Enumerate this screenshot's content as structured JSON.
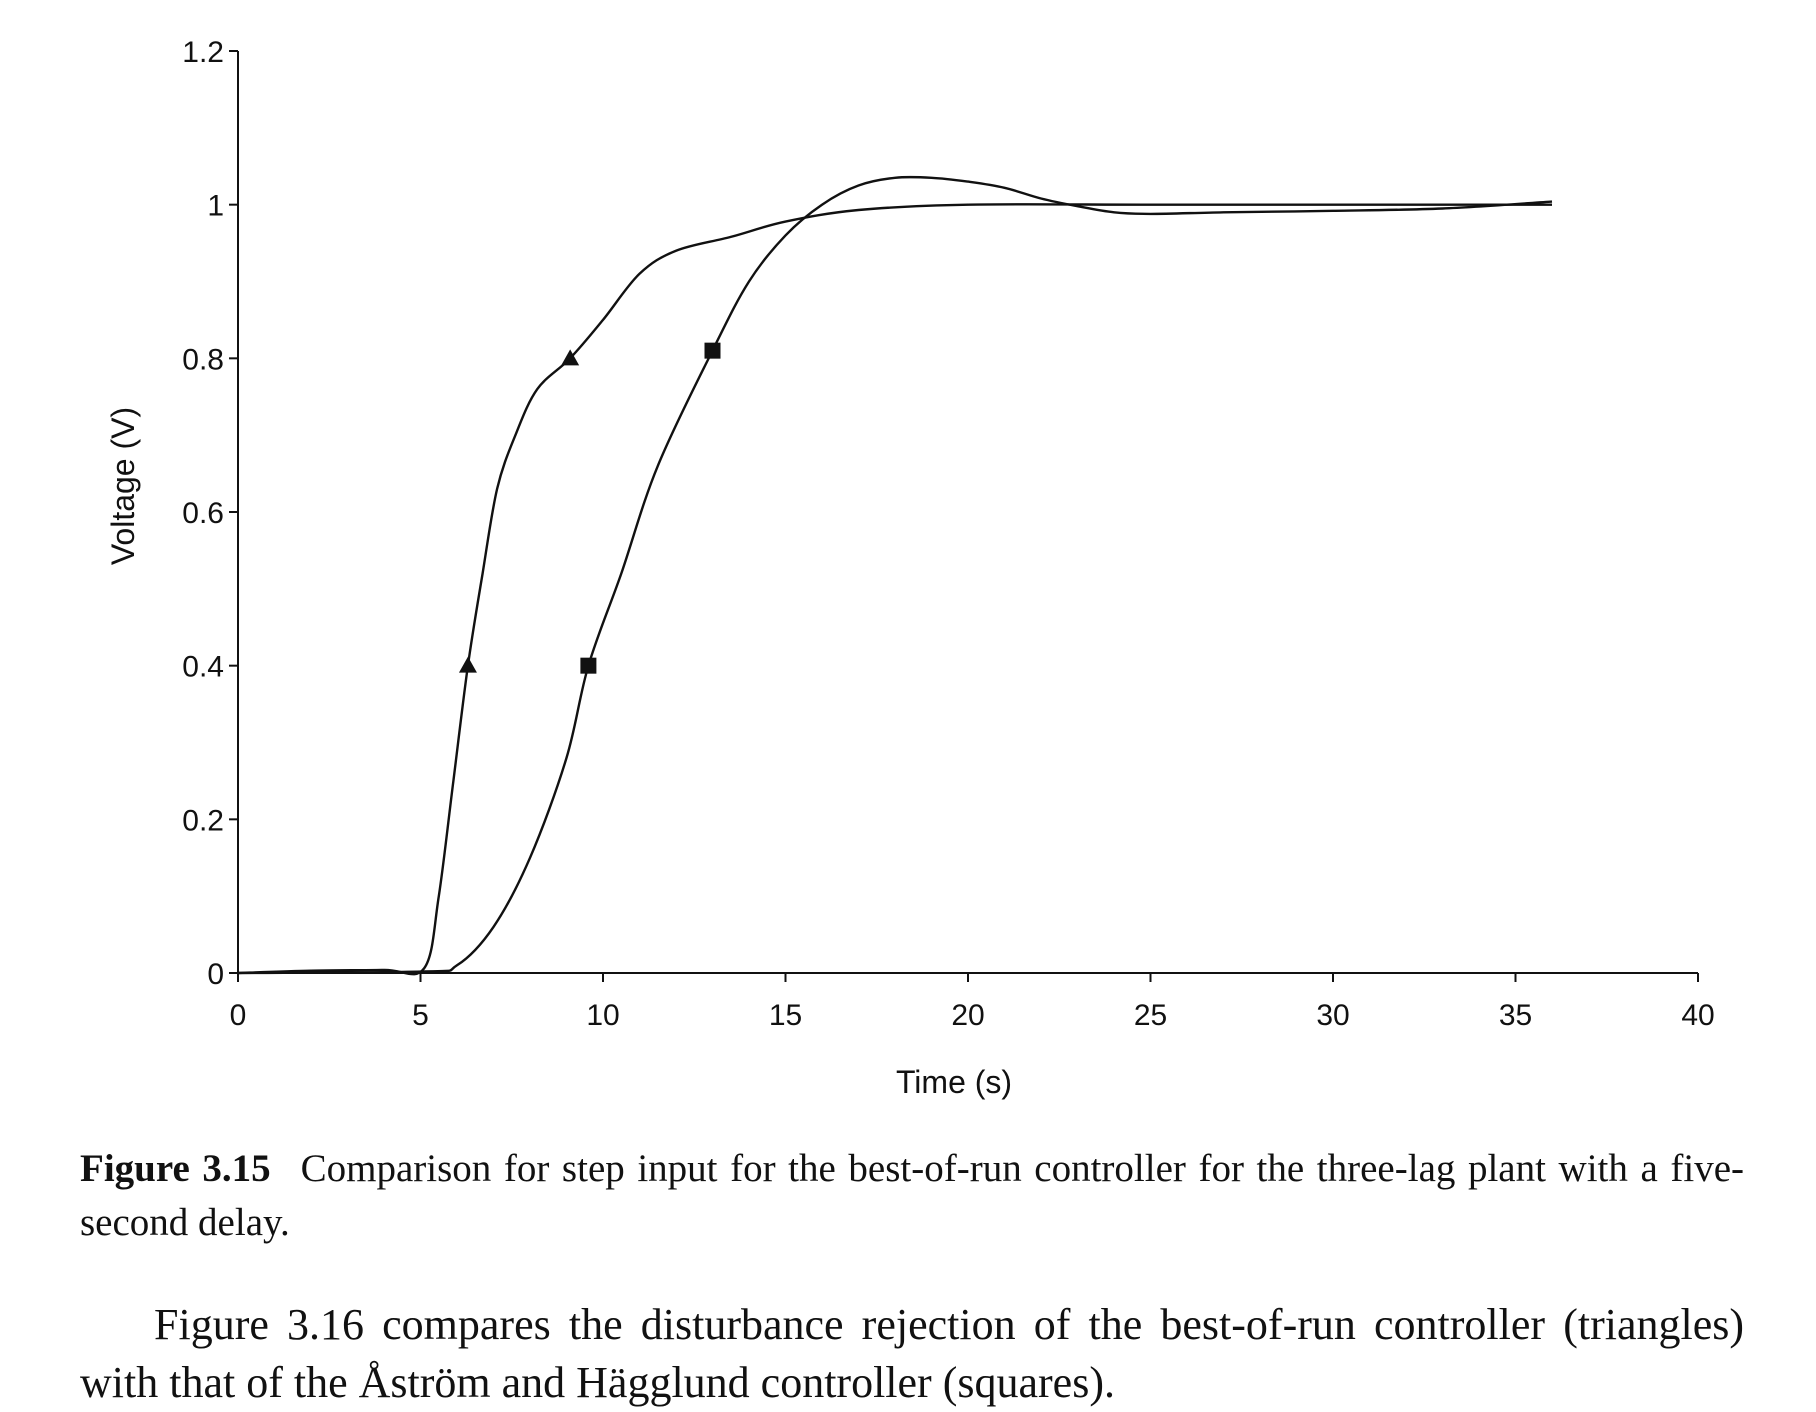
{
  "chart_data": {
    "type": "line",
    "xlabel": "Time (s)",
    "ylabel": "Voltage (V)",
    "xlim": [
      0,
      40
    ],
    "ylim": [
      0,
      1.2
    ],
    "x_ticks": [
      "0",
      "5",
      "10",
      "15",
      "20",
      "25",
      "30",
      "35",
      "40"
    ],
    "y_ticks": [
      "0",
      "0.2",
      "0.4",
      "0.6",
      "0.8",
      "1",
      "1.2"
    ],
    "grid": false,
    "series": [
      {
        "marker": "triangle",
        "points": [
          [
            0,
            0
          ],
          [
            2,
            0.003
          ],
          [
            4,
            0.004
          ],
          [
            5.1,
            0.006
          ],
          [
            5.5,
            0.1
          ],
          [
            5.9,
            0.25
          ],
          [
            6.3,
            0.4
          ],
          [
            6.7,
            0.52
          ],
          [
            7.1,
            0.63
          ],
          [
            7.6,
            0.7
          ],
          [
            8.2,
            0.76
          ],
          [
            9.1,
            0.8
          ],
          [
            10,
            0.85
          ],
          [
            11,
            0.91
          ],
          [
            12,
            0.94
          ],
          [
            13.5,
            0.958
          ],
          [
            15,
            0.978
          ],
          [
            17,
            0.993
          ],
          [
            20,
            1.0
          ],
          [
            25,
            1.0
          ],
          [
            30,
            1.0
          ],
          [
            36,
            1.0
          ]
        ],
        "marker_points": [
          [
            6.3,
            0.4
          ],
          [
            9.1,
            0.8
          ]
        ]
      },
      {
        "marker": "square",
        "points": [
          [
            0,
            0
          ],
          [
            5.1,
            0.002
          ],
          [
            6,
            0.01
          ],
          [
            7,
            0.06
          ],
          [
            8,
            0.15
          ],
          [
            9,
            0.28
          ],
          [
            9.6,
            0.4
          ],
          [
            10.5,
            0.52
          ],
          [
            11.5,
            0.66
          ],
          [
            13,
            0.81
          ],
          [
            14,
            0.9
          ],
          [
            15,
            0.96
          ],
          [
            16,
            1.0
          ],
          [
            17,
            1.025
          ],
          [
            18,
            1.035
          ],
          [
            19,
            1.035
          ],
          [
            20,
            1.03
          ],
          [
            21,
            1.022
          ],
          [
            22,
            1.008
          ],
          [
            23,
            0.998
          ],
          [
            24,
            0.99
          ],
          [
            25,
            0.988
          ],
          [
            27,
            0.99
          ],
          [
            30,
            0.992
          ],
          [
            33,
            0.995
          ],
          [
            36,
            1.004
          ]
        ],
        "marker_points": [
          [
            9.6,
            0.4
          ],
          [
            13,
            0.81
          ]
        ]
      }
    ]
  },
  "caption": {
    "label": "Figure 3.15",
    "text": "Comparison for step input for the best-of-run controller for the three-lag plant with a five-second delay."
  },
  "body_text": "Figure 3.16 compares the disturbance rejection of the best-of-run controller (triangles) with that of the Åström and Hägglund controller (squares)."
}
